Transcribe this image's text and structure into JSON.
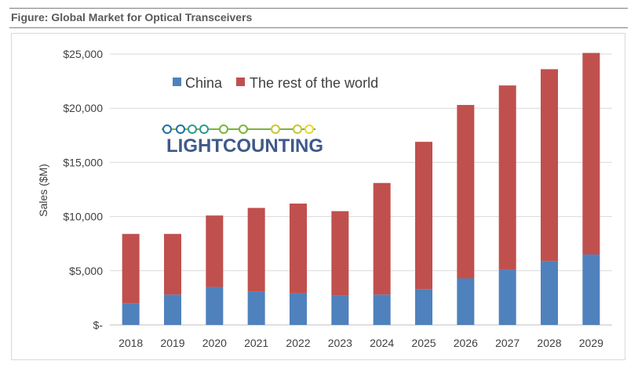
{
  "figure": {
    "title": "Figure: Global Market for Optical Transceivers"
  },
  "logo": {
    "text": "LIGHTCOUNTING",
    "colors": [
      "#1f6fa6",
      "#2f9a8a",
      "#7ab33b",
      "#c7c72a",
      "#e8d92a"
    ]
  },
  "chart_data": {
    "type": "bar",
    "stacked": true,
    "categories": [
      "2018",
      "2019",
      "2020",
      "2021",
      "2022",
      "2023",
      "2024",
      "2025",
      "2026",
      "2027",
      "2028",
      "2029"
    ],
    "series": [
      {
        "name": "China",
        "color": "#4f81bd",
        "values": [
          2000,
          2800,
          3500,
          3100,
          2900,
          2700,
          2800,
          3300,
          4300,
          5100,
          5900,
          6500
        ]
      },
      {
        "name": "The rest of the world",
        "color": "#c0504d",
        "values": [
          6400,
          5600,
          6600,
          7700,
          8300,
          7800,
          10300,
          13600,
          16000,
          17000,
          17700,
          18600
        ]
      }
    ],
    "ylabel": "Sales ($M)",
    "xlabel": "",
    "ylim": [
      0,
      25000
    ],
    "yticks": [
      0,
      5000,
      10000,
      15000,
      20000,
      25000
    ],
    "ytick_labels": [
      "$-",
      "$5,000",
      "$10,000",
      "$15,000",
      "$20,000",
      "$25,000"
    ],
    "grid": "horizontal",
    "legend_position": "top-left"
  }
}
